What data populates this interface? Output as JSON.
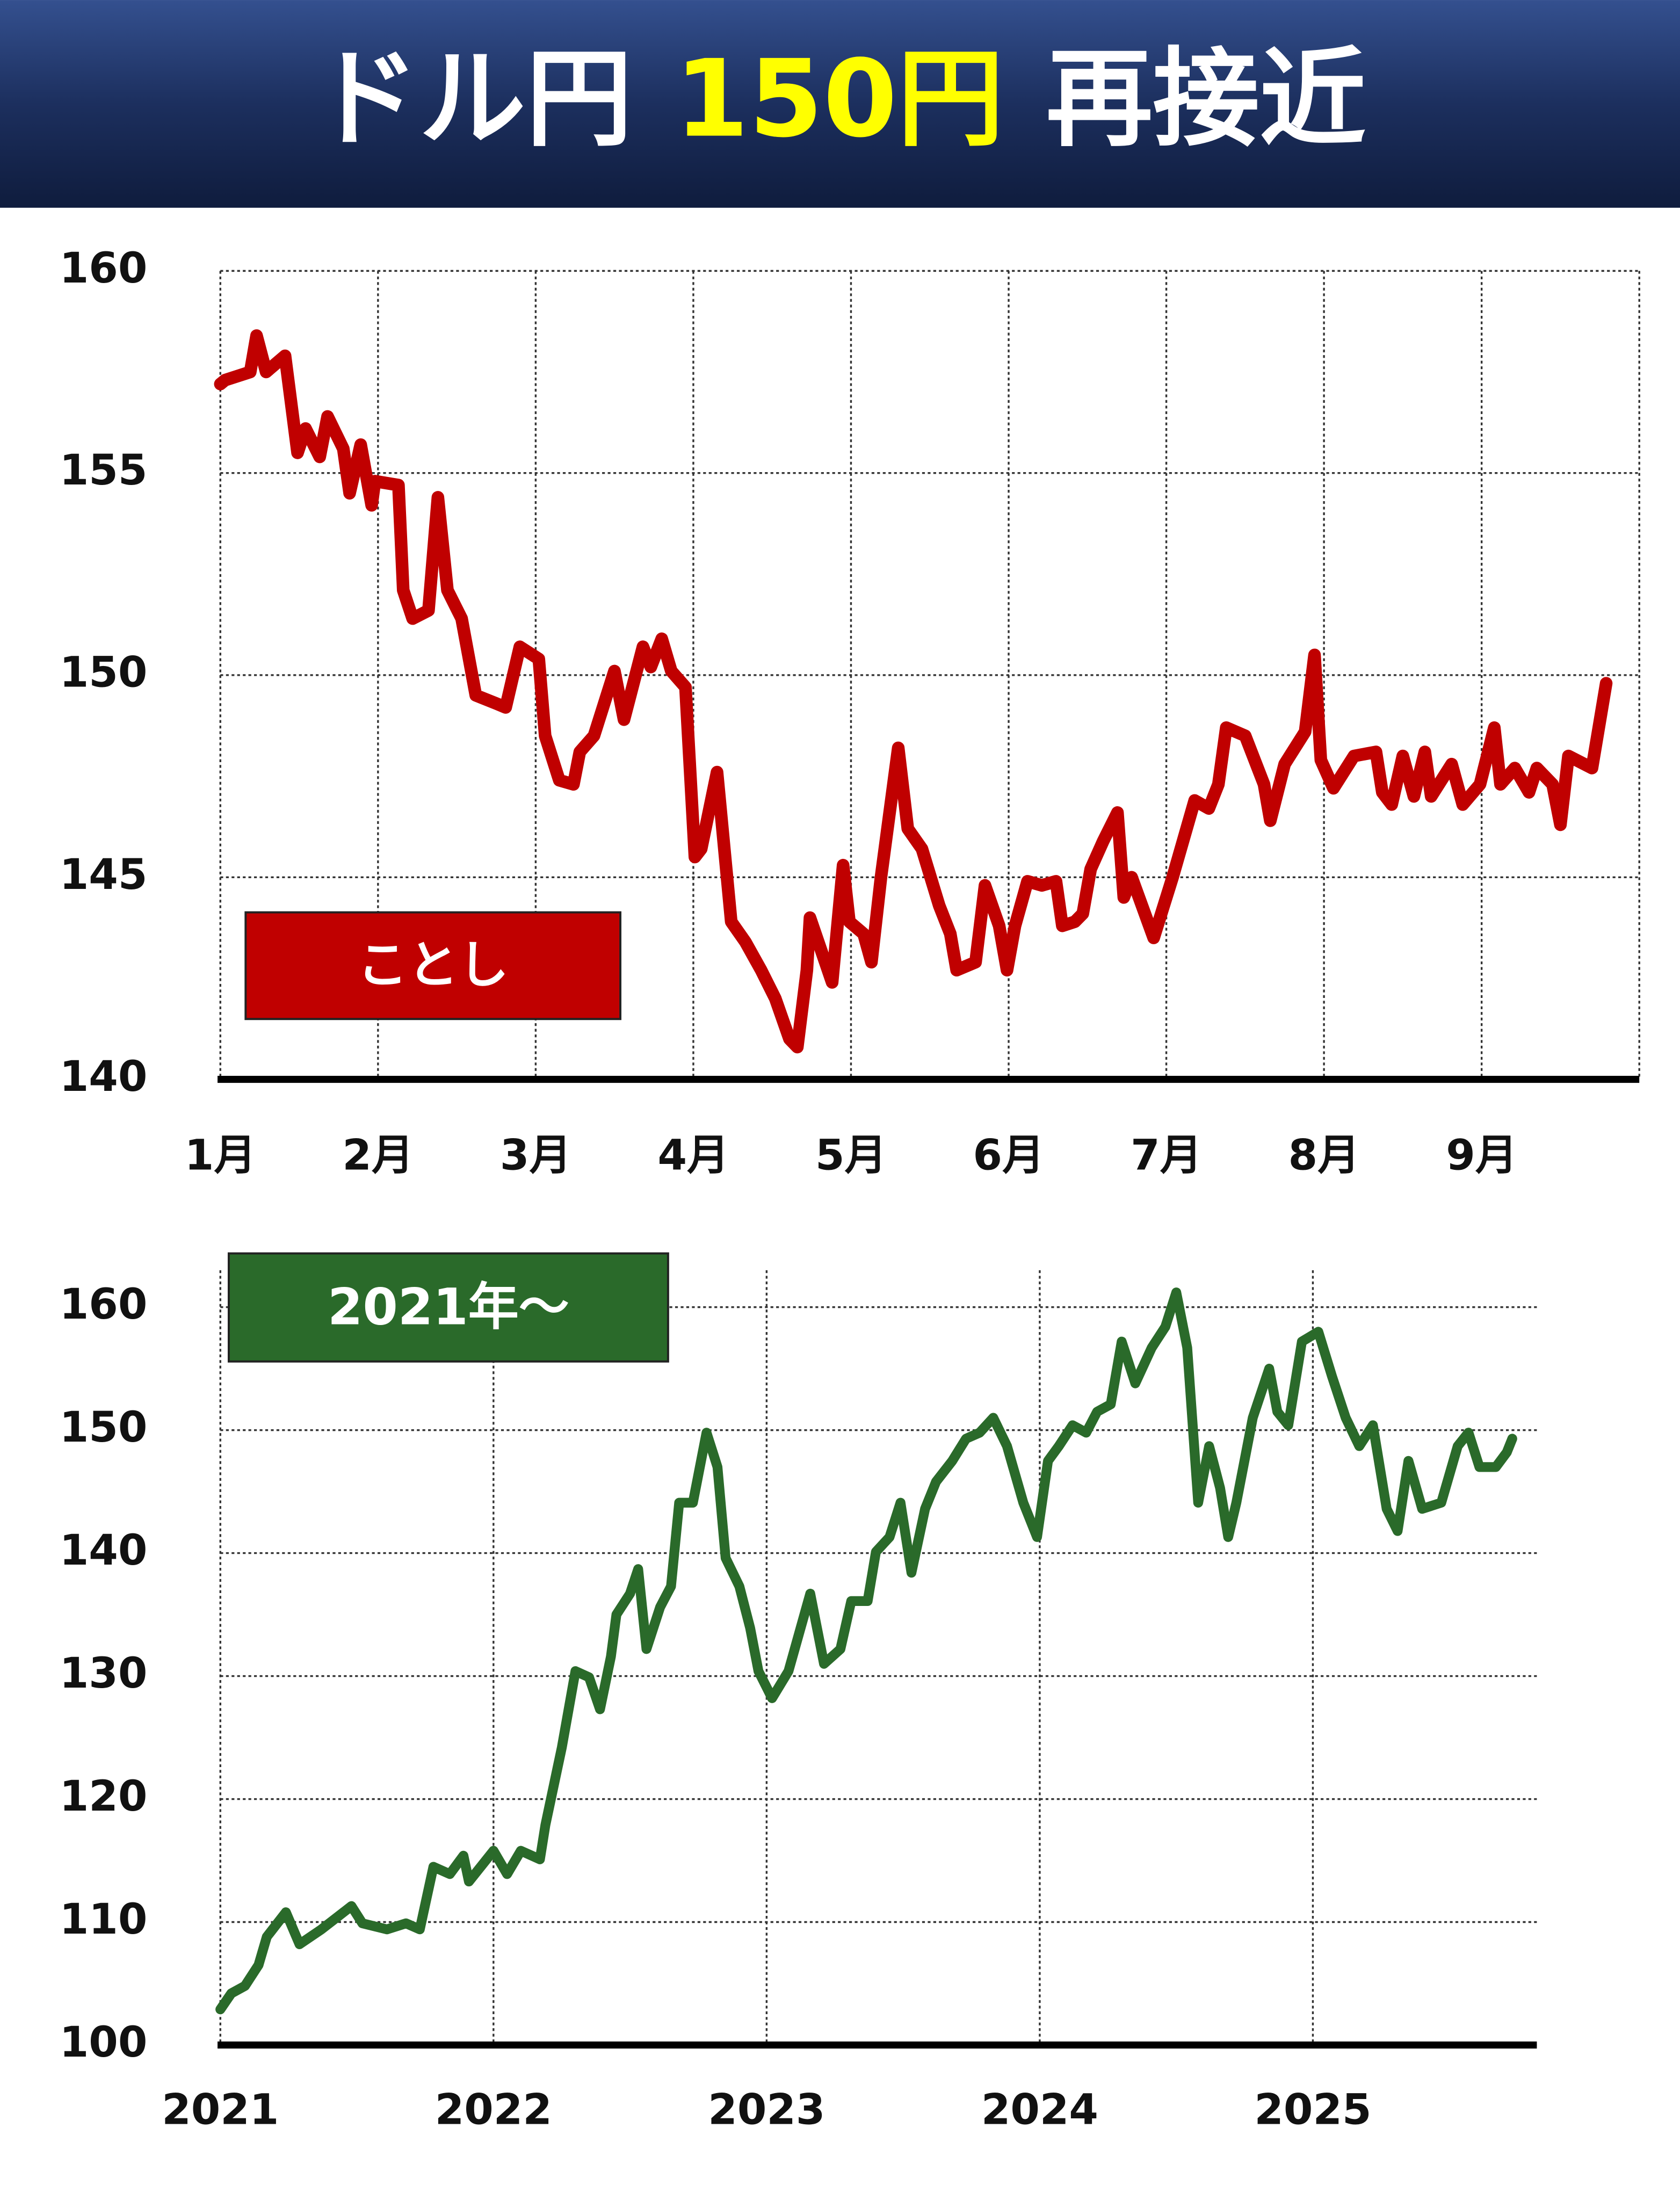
{
  "title": {
    "parts": [
      {
        "text": "ドル円",
        "color": "#ffffff"
      },
      {
        "text": "150円",
        "color": "#ffff00"
      },
      {
        "text": "再接近",
        "color": "#ffffff"
      }
    ]
  },
  "chart_data": [
    {
      "type": "line",
      "grid": true,
      "series": [
        {
          "name": "ことし",
          "color": "#c00000",
          "values": [
            157.2,
            157.3,
            157.5,
            158.4,
            157.5,
            157.9,
            155.5,
            156.1,
            155.4,
            156.4,
            155.6,
            154.5,
            155.7,
            154.2,
            154.8,
            154.7,
            152.1,
            151.4,
            151.6,
            154.4,
            152.1,
            151.4,
            149.5,
            149.3,
            149.2,
            150.7,
            150.4,
            148.5,
            147.4,
            147.3,
            148.1,
            148.5,
            150.1,
            148.9,
            150.7,
            150.2,
            150.9,
            150.1,
            149.7,
            145.5,
            145.7,
            147.6,
            143.9,
            143.4,
            142.7,
            142.0,
            141.0,
            140.8,
            142.7,
            144.0,
            142.4,
            145.3,
            143.9,
            143.6,
            142.9,
            145.0,
            148.2,
            146.2,
            145.7,
            144.3,
            143.6,
            142.7,
            142.9,
            144.8,
            143.8,
            142.7,
            143.8,
            144.9,
            144.8,
            144.9,
            143.8,
            143.9,
            144.1,
            145.2,
            145.9,
            146.6,
            144.5,
            145.0,
            143.5,
            145.0,
            146.9,
            146.7,
            147.3,
            148.7,
            148.5,
            147.3,
            146.4,
            147.8,
            148.6,
            150.5,
            147.9,
            147.2,
            148.0,
            148.1,
            147.1,
            146.8,
            148.0,
            147.0,
            148.1,
            147.0,
            147.8,
            146.8,
            147.3,
            148.7,
            147.3,
            147.7,
            147.1,
            147.7,
            147.3,
            146.3,
            148.0,
            147.7,
            149.8
          ]
        }
      ],
      "x": [
        1.0,
        1.03,
        1.19,
        1.23,
        1.29,
        1.41,
        1.49,
        1.54,
        1.63,
        1.68,
        1.78,
        1.82,
        1.89,
        1.96,
        1.98,
        2.13,
        2.16,
        2.22,
        2.32,
        2.38,
        2.44,
        2.53,
        2.62,
        2.75,
        2.81,
        2.9,
        3.02,
        3.06,
        3.15,
        3.24,
        3.28,
        3.37,
        3.5,
        3.56,
        3.68,
        3.73,
        3.8,
        3.86,
        3.95,
        4.01,
        4.05,
        4.15,
        4.24,
        4.33,
        4.43,
        4.52,
        4.61,
        4.66,
        4.72,
        4.74,
        4.88,
        4.95,
        4.99,
        5.08,
        5.13,
        5.19,
        5.3,
        5.36,
        5.45,
        5.56,
        5.63,
        5.67,
        5.79,
        5.85,
        5.94,
        5.99,
        6.04,
        6.12,
        6.21,
        6.3,
        6.34,
        6.42,
        6.47,
        6.52,
        6.6,
        6.69,
        6.73,
        6.78,
        6.92,
        7.04,
        7.18,
        7.27,
        7.33,
        7.38,
        7.5,
        7.62,
        7.66,
        7.75,
        7.88,
        7.94,
        7.98,
        8.06,
        8.19,
        8.33,
        8.37,
        8.43,
        8.5,
        8.57,
        8.64,
        8.68,
        8.81,
        8.88,
        8.99,
        9.08,
        9.12,
        9.21,
        9.3,
        9.35,
        9.45,
        9.5,
        9.55,
        9.7,
        9.79
      ],
      "xlim": [
        1,
        10
      ],
      "xticks": [
        {
          "value": 1,
          "label": "1月"
        },
        {
          "value": 2,
          "label": "2月"
        },
        {
          "value": 3,
          "label": "3月"
        },
        {
          "value": 4,
          "label": "4月"
        },
        {
          "value": 5,
          "label": "5月"
        },
        {
          "value": 6,
          "label": "6月"
        },
        {
          "value": 7,
          "label": "7月"
        },
        {
          "value": 8,
          "label": "8月"
        },
        {
          "value": 9,
          "label": "9月"
        }
      ],
      "ylim": [
        140,
        160
      ],
      "yticks": [
        140,
        145,
        150,
        155,
        160
      ]
    },
    {
      "type": "line",
      "grid": true,
      "series": [
        {
          "name": "2021年〜",
          "color": "#2a6a2a",
          "values": [
            102.9,
            104.2,
            104.8,
            106.5,
            108.8,
            110.8,
            108.2,
            109.4,
            111.3,
            109.9,
            109.4,
            109.9,
            109.4,
            114.5,
            113.9,
            115.4,
            113.3,
            115.8,
            113.9,
            115.8,
            115.1,
            117.9,
            124.2,
            130.4,
            129.9,
            127.3,
            131.6,
            135.0,
            136.7,
            138.7,
            132.2,
            135.6,
            137.3,
            144.1,
            144.1,
            149.8,
            147.0,
            139.6,
            137.3,
            133.9,
            130.4,
            128.2,
            130.4,
            136.7,
            131.0,
            132.2,
            136.1,
            136.1,
            140.1,
            141.3,
            144.1,
            138.4,
            143.6,
            145.8,
            147.5,
            149.3,
            149.8,
            151.0,
            148.7,
            144.1,
            141.3,
            147.5,
            148.7,
            150.4,
            149.8,
            151.5,
            152.1,
            157.2,
            153.8,
            156.7,
            158.4,
            161.2,
            156.7,
            144.1,
            148.7,
            145.3,
            141.3,
            144.1,
            151.0,
            155.0,
            151.5,
            150.4,
            157.2,
            158.0,
            154.4,
            151.0,
            148.7,
            150.4,
            143.6,
            141.8,
            147.5,
            143.6,
            144.1,
            148.7,
            149.8,
            147.0,
            147.0,
            148.2,
            149.3
          ]
        }
      ],
      "x": [
        2021.0,
        2021.04,
        2021.09,
        2021.14,
        2021.17,
        2021.24,
        2021.29,
        2021.37,
        2021.48,
        2021.52,
        2021.61,
        2021.68,
        2021.73,
        2021.78,
        2021.84,
        2021.89,
        2021.91,
        2022.0,
        2022.05,
        2022.1,
        2022.17,
        2022.19,
        2022.25,
        2022.3,
        2022.35,
        2022.39,
        2022.43,
        2022.45,
        2022.5,
        2022.53,
        2022.56,
        2022.61,
        2022.65,
        2022.68,
        2022.73,
        2022.78,
        2022.82,
        2022.85,
        2022.9,
        2022.94,
        2022.97,
        2023.02,
        2023.08,
        2023.16,
        2023.21,
        2023.27,
        2023.31,
        2023.37,
        2023.4,
        2023.45,
        2023.49,
        2023.53,
        2023.58,
        2023.62,
        2023.68,
        2023.73,
        2023.78,
        2023.83,
        2023.88,
        2023.94,
        2023.99,
        2024.03,
        2024.07,
        2024.12,
        2024.17,
        2024.21,
        2024.26,
        2024.3,
        2024.35,
        2024.41,
        2024.46,
        2024.5,
        2024.54,
        2024.58,
        2024.62,
        2024.66,
        2024.69,
        2024.72,
        2024.78,
        2024.84,
        2024.87,
        2024.91,
        2024.96,
        2025.02,
        2025.07,
        2025.12,
        2025.17,
        2025.22,
        2025.27,
        2025.31,
        2025.35,
        2025.4,
        2025.47,
        2025.53,
        2025.57,
        2025.61,
        2025.67,
        2025.71,
        2025.73
      ],
      "xlim": [
        2021,
        2025.82
      ],
      "xticks": [
        2021,
        2022,
        2023,
        2024,
        2025
      ],
      "ylim": [
        100,
        163
      ],
      "yticks": [
        100,
        110,
        120,
        130,
        140,
        150,
        160
      ]
    }
  ]
}
